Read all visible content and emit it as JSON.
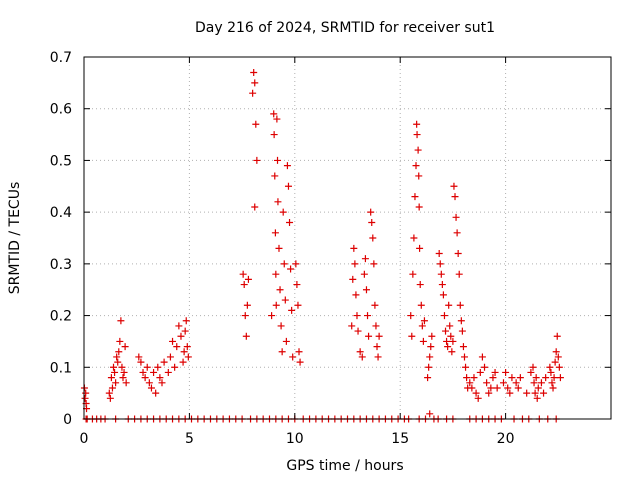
{
  "chart_data": {
    "type": "scatter",
    "title": "Day 216 of 2024, SRMTID for receiver sut1",
    "xlabel": "GPS time / hours",
    "ylabel": "SRMTID / TECUs",
    "xlim": [
      0,
      25
    ],
    "ylim": [
      0,
      0.7
    ],
    "xticks": [
      "0",
      "5",
      "10",
      "15",
      "20"
    ],
    "yticks": [
      "0",
      "0.1",
      "0.2",
      "0.3",
      "0.4",
      "0.5",
      "0.6",
      "0.7"
    ],
    "grid": true,
    "marker": "+",
    "color": "#dd0000",
    "series": [
      {
        "name": "sut1",
        "points": [
          [
            0.02,
            0.06
          ],
          [
            0.05,
            0.04
          ],
          [
            0.08,
            0.05
          ],
          [
            0.1,
            0.03
          ],
          [
            0.12,
            0.02
          ],
          [
            0.1,
            0.0
          ],
          [
            0.15,
            0.0
          ],
          [
            0.4,
            0.0
          ],
          [
            0.6,
            0.0
          ],
          [
            0.8,
            0.0
          ],
          [
            1.0,
            0.0
          ],
          [
            1.2,
            0.05
          ],
          [
            1.25,
            0.04
          ],
          [
            1.3,
            0.08
          ],
          [
            1.35,
            0.06
          ],
          [
            1.4,
            0.1
          ],
          [
            1.45,
            0.09
          ],
          [
            1.5,
            0.07
          ],
          [
            1.55,
            0.12
          ],
          [
            1.6,
            0.11
          ],
          [
            1.65,
            0.13
          ],
          [
            1.7,
            0.15
          ],
          [
            1.75,
            0.19
          ],
          [
            1.8,
            0.1
          ],
          [
            1.85,
            0.08
          ],
          [
            1.9,
            0.09
          ],
          [
            1.95,
            0.14
          ],
          [
            2.0,
            0.07
          ],
          [
            1.5,
            0.0
          ],
          [
            2.1,
            0.0
          ],
          [
            2.4,
            0.0
          ],
          [
            2.6,
            0.12
          ],
          [
            2.7,
            0.11
          ],
          [
            2.8,
            0.09
          ],
          [
            2.9,
            0.08
          ],
          [
            3.0,
            0.1
          ],
          [
            3.1,
            0.07
          ],
          [
            3.2,
            0.06
          ],
          [
            3.3,
            0.09
          ],
          [
            3.4,
            0.05
          ],
          [
            3.5,
            0.1
          ],
          [
            3.6,
            0.08
          ],
          [
            3.7,
            0.07
          ],
          [
            3.8,
            0.11
          ],
          [
            2.7,
            0.0
          ],
          [
            3.0,
            0.0
          ],
          [
            3.3,
            0.0
          ],
          [
            3.6,
            0.0
          ],
          [
            3.9,
            0.0
          ],
          [
            4.0,
            0.09
          ],
          [
            4.1,
            0.12
          ],
          [
            4.2,
            0.15
          ],
          [
            4.3,
            0.1
          ],
          [
            4.4,
            0.14
          ],
          [
            4.5,
            0.18
          ],
          [
            4.6,
            0.16
          ],
          [
            4.7,
            0.11
          ],
          [
            4.75,
            0.13
          ],
          [
            4.8,
            0.17
          ],
          [
            4.85,
            0.19
          ],
          [
            4.9,
            0.14
          ],
          [
            4.95,
            0.12
          ],
          [
            4.2,
            0.0
          ],
          [
            4.5,
            0.0
          ],
          [
            4.8,
            0.0
          ],
          [
            5.1,
            0.0
          ],
          [
            5.4,
            0.0
          ],
          [
            5.7,
            0.0
          ],
          [
            6.0,
            0.0
          ],
          [
            6.3,
            0.0
          ],
          [
            6.6,
            0.0
          ],
          [
            6.9,
            0.0
          ],
          [
            7.2,
            0.0
          ],
          [
            7.5,
            0.0
          ],
          [
            7.55,
            0.28
          ],
          [
            7.6,
            0.26
          ],
          [
            7.65,
            0.2
          ],
          [
            7.7,
            0.16
          ],
          [
            7.75,
            0.22
          ],
          [
            7.8,
            0.27
          ],
          [
            7.9,
            0.0
          ],
          [
            8.0,
            0.63
          ],
          [
            8.05,
            0.67
          ],
          [
            8.1,
            0.65
          ],
          [
            8.15,
            0.57
          ],
          [
            8.2,
            0.5
          ],
          [
            8.1,
            0.41
          ],
          [
            8.2,
            0.0
          ],
          [
            8.5,
            0.0
          ],
          [
            8.8,
            0.0
          ],
          [
            8.9,
            0.2
          ],
          [
            9.0,
            0.59
          ],
          [
            9.02,
            0.55
          ],
          [
            9.05,
            0.47
          ],
          [
            9.08,
            0.36
          ],
          [
            9.1,
            0.28
          ],
          [
            9.12,
            0.22
          ],
          [
            9.15,
            0.58
          ],
          [
            9.18,
            0.5
          ],
          [
            9.2,
            0.42
          ],
          [
            9.25,
            0.33
          ],
          [
            9.3,
            0.25
          ],
          [
            9.35,
            0.18
          ],
          [
            9.4,
            0.13
          ],
          [
            9.45,
            0.4
          ],
          [
            9.5,
            0.3
          ],
          [
            9.55,
            0.23
          ],
          [
            9.6,
            0.15
          ],
          [
            9.65,
            0.49
          ],
          [
            9.7,
            0.45
          ],
          [
            9.75,
            0.38
          ],
          [
            9.8,
            0.29
          ],
          [
            9.85,
            0.21
          ],
          [
            9.9,
            0.12
          ],
          [
            9.1,
            0.0
          ],
          [
            9.4,
            0.0
          ],
          [
            9.7,
            0.0
          ],
          [
            10.0,
            0.0
          ],
          [
            10.05,
            0.3
          ],
          [
            10.1,
            0.26
          ],
          [
            10.15,
            0.22
          ],
          [
            10.2,
            0.13
          ],
          [
            10.25,
            0.11
          ],
          [
            10.4,
            0.0
          ],
          [
            10.7,
            0.0
          ],
          [
            11.0,
            0.0
          ],
          [
            11.3,
            0.0
          ],
          [
            11.6,
            0.0
          ],
          [
            11.9,
            0.0
          ],
          [
            12.2,
            0.0
          ],
          [
            12.5,
            0.0
          ],
          [
            12.7,
            0.18
          ],
          [
            12.75,
            0.27
          ],
          [
            12.8,
            0.33
          ],
          [
            12.85,
            0.3
          ],
          [
            12.9,
            0.24
          ],
          [
            12.95,
            0.2
          ],
          [
            13.0,
            0.17
          ],
          [
            13.1,
            0.13
          ],
          [
            13.2,
            0.12
          ],
          [
            13.3,
            0.28
          ],
          [
            13.35,
            0.31
          ],
          [
            13.4,
            0.25
          ],
          [
            13.45,
            0.2
          ],
          [
            13.5,
            0.16
          ],
          [
            13.6,
            0.4
          ],
          [
            13.65,
            0.38
          ],
          [
            13.7,
            0.35
          ],
          [
            13.75,
            0.3
          ],
          [
            13.8,
            0.22
          ],
          [
            13.85,
            0.18
          ],
          [
            13.9,
            0.14
          ],
          [
            13.95,
            0.12
          ],
          [
            14.0,
            0.16
          ],
          [
            12.8,
            0.0
          ],
          [
            13.1,
            0.0
          ],
          [
            13.4,
            0.0
          ],
          [
            13.7,
            0.0
          ],
          [
            14.0,
            0.0
          ],
          [
            14.3,
            0.0
          ],
          [
            14.6,
            0.0
          ],
          [
            14.9,
            0.0
          ],
          [
            15.2,
            0.0
          ],
          [
            15.4,
            0.0
          ],
          [
            15.5,
            0.2
          ],
          [
            15.55,
            0.16
          ],
          [
            15.6,
            0.28
          ],
          [
            15.65,
            0.35
          ],
          [
            15.7,
            0.43
          ],
          [
            15.75,
            0.49
          ],
          [
            15.78,
            0.57
          ],
          [
            15.8,
            0.55
          ],
          [
            15.85,
            0.52
          ],
          [
            15.88,
            0.47
          ],
          [
            15.9,
            0.41
          ],
          [
            15.92,
            0.33
          ],
          [
            15.95,
            0.26
          ],
          [
            16.0,
            0.22
          ],
          [
            16.05,
            0.18
          ],
          [
            16.1,
            0.15
          ],
          [
            16.15,
            0.19
          ],
          [
            15.9,
            0.0
          ],
          [
            16.2,
            0.0
          ],
          [
            16.3,
            0.08
          ],
          [
            16.35,
            0.1
          ],
          [
            16.4,
            0.12
          ],
          [
            16.45,
            0.14
          ],
          [
            16.5,
            0.16
          ],
          [
            16.4,
            0.01
          ],
          [
            16.6,
            0.0
          ],
          [
            16.8,
            0.0
          ],
          [
            16.85,
            0.32
          ],
          [
            16.9,
            0.3
          ],
          [
            16.95,
            0.28
          ],
          [
            17.0,
            0.26
          ],
          [
            17.05,
            0.24
          ],
          [
            17.1,
            0.2
          ],
          [
            17.15,
            0.17
          ],
          [
            17.2,
            0.15
          ],
          [
            17.25,
            0.14
          ],
          [
            17.3,
            0.22
          ],
          [
            17.35,
            0.18
          ],
          [
            17.4,
            0.16
          ],
          [
            17.45,
            0.13
          ],
          [
            17.5,
            0.15
          ],
          [
            17.55,
            0.45
          ],
          [
            17.6,
            0.43
          ],
          [
            17.65,
            0.39
          ],
          [
            17.7,
            0.36
          ],
          [
            17.75,
            0.32
          ],
          [
            17.8,
            0.28
          ],
          [
            17.85,
            0.22
          ],
          [
            17.9,
            0.19
          ],
          [
            17.95,
            0.17
          ],
          [
            18.0,
            0.14
          ],
          [
            18.05,
            0.12
          ],
          [
            18.1,
            0.1
          ],
          [
            18.15,
            0.08
          ],
          [
            18.2,
            0.06
          ],
          [
            17.2,
            0.0
          ],
          [
            17.5,
            0.0
          ],
          [
            18.3,
            0.07
          ],
          [
            18.4,
            0.06
          ],
          [
            18.5,
            0.08
          ],
          [
            18.6,
            0.05
          ],
          [
            18.7,
            0.04
          ],
          [
            18.8,
            0.09
          ],
          [
            18.9,
            0.12
          ],
          [
            19.0,
            0.1
          ],
          [
            19.1,
            0.07
          ],
          [
            19.2,
            0.05
          ],
          [
            19.3,
            0.06
          ],
          [
            19.4,
            0.08
          ],
          [
            19.5,
            0.09
          ],
          [
            19.6,
            0.06
          ],
          [
            18.3,
            0.0
          ],
          [
            18.6,
            0.0
          ],
          [
            18.9,
            0.0
          ],
          [
            19.2,
            0.0
          ],
          [
            19.5,
            0.0
          ],
          [
            19.8,
            0.0
          ],
          [
            19.9,
            0.07
          ],
          [
            20.0,
            0.09
          ],
          [
            20.1,
            0.06
          ],
          [
            20.2,
            0.05
          ],
          [
            20.3,
            0.08
          ],
          [
            20.4,
            0.0
          ],
          [
            20.5,
            0.07
          ],
          [
            20.6,
            0.06
          ],
          [
            20.7,
            0.08
          ],
          [
            20.8,
            0.0
          ],
          [
            21.0,
            0.05
          ],
          [
            21.1,
            0.0
          ],
          [
            21.2,
            0.09
          ],
          [
            21.3,
            0.1
          ],
          [
            21.35,
            0.07
          ],
          [
            21.4,
            0.05
          ],
          [
            21.45,
            0.08
          ],
          [
            21.5,
            0.04
          ],
          [
            21.55,
            0.06
          ],
          [
            21.6,
            0.0
          ],
          [
            21.7,
            0.07
          ],
          [
            21.8,
            0.05
          ],
          [
            21.9,
            0.08
          ],
          [
            22.0,
            0.0
          ],
          [
            22.1,
            0.1
          ],
          [
            22.15,
            0.09
          ],
          [
            22.2,
            0.07
          ],
          [
            22.25,
            0.06
          ],
          [
            22.3,
            0.08
          ],
          [
            22.35,
            0.11
          ],
          [
            22.4,
            0.13
          ],
          [
            22.45,
            0.16
          ],
          [
            22.5,
            0.12
          ],
          [
            22.55,
            0.1
          ],
          [
            22.6,
            0.08
          ],
          [
            22.4,
            0.0
          ]
        ]
      }
    ]
  }
}
